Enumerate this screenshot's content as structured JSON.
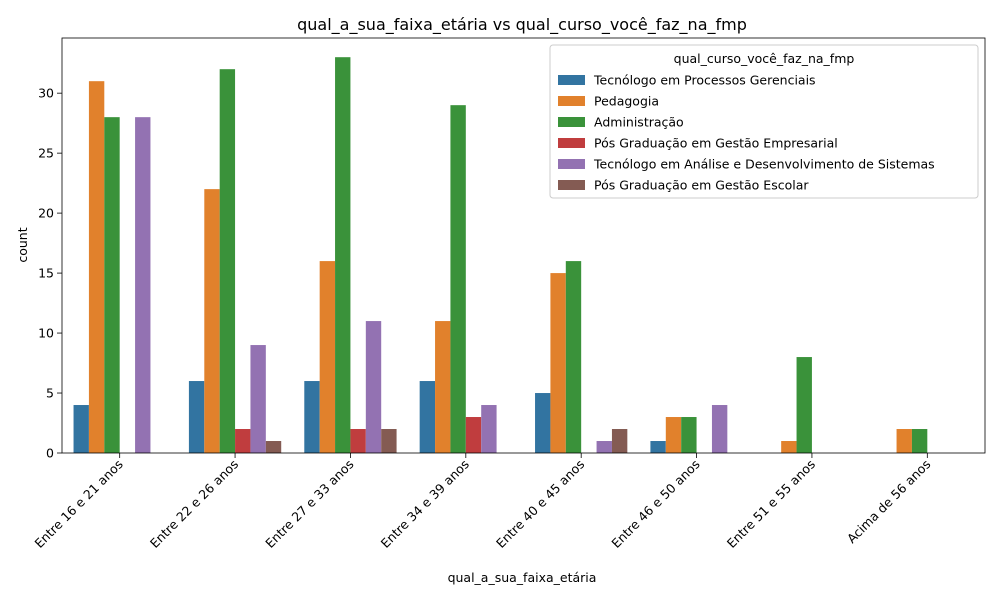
{
  "chart_data": {
    "type": "bar",
    "title": "qual_a_sua_faixa_etária vs qual_curso_você_faz_na_fmp",
    "xlabel": "qual_a_sua_faixa_etária",
    "ylabel": "count",
    "ylim": [
      0,
      34.6
    ],
    "yticks": [
      0,
      5,
      10,
      15,
      20,
      25,
      30
    ],
    "grid": false,
    "legend": {
      "title": "qual_curso_você_faz_na_fmp",
      "placement": "top-right"
    },
    "categories": [
      "Entre 16 e 21 anos",
      "Entre 22 e 26 anos",
      "Entre 27 e 33 anos",
      "Entre 34 e 39 anos",
      "Entre 40 e 45 anos",
      "Entre 46 e 50 anos",
      "Entre 51 e 55 anos",
      "Acima de 56 anos"
    ],
    "series": [
      {
        "name": "Tecnólogo em Processos Gerenciais",
        "color": "#3274a1",
        "values": [
          4,
          6,
          6,
          6,
          5,
          1,
          0,
          0
        ]
      },
      {
        "name": "Pedagogia",
        "color": "#e1812c",
        "values": [
          31,
          22,
          16,
          11,
          15,
          3,
          1,
          2
        ]
      },
      {
        "name": "Administração",
        "color": "#3a923a",
        "values": [
          28,
          32,
          33,
          29,
          16,
          3,
          8,
          2
        ]
      },
      {
        "name": "Pós Graduação em Gestão Empresarial",
        "color": "#c03d3e",
        "values": [
          0,
          2,
          2,
          3,
          0,
          0,
          0,
          0
        ]
      },
      {
        "name": "Tecnólogo em Análise e Desenvolvimento de Sistemas",
        "color": "#9372b2",
        "values": [
          28,
          9,
          11,
          4,
          1,
          4,
          0,
          0
        ]
      },
      {
        "name": "Pós Graduação em Gestão Escolar",
        "color": "#845b53",
        "values": [
          0,
          1,
          2,
          0,
          2,
          0,
          0,
          0
        ]
      }
    ]
  }
}
